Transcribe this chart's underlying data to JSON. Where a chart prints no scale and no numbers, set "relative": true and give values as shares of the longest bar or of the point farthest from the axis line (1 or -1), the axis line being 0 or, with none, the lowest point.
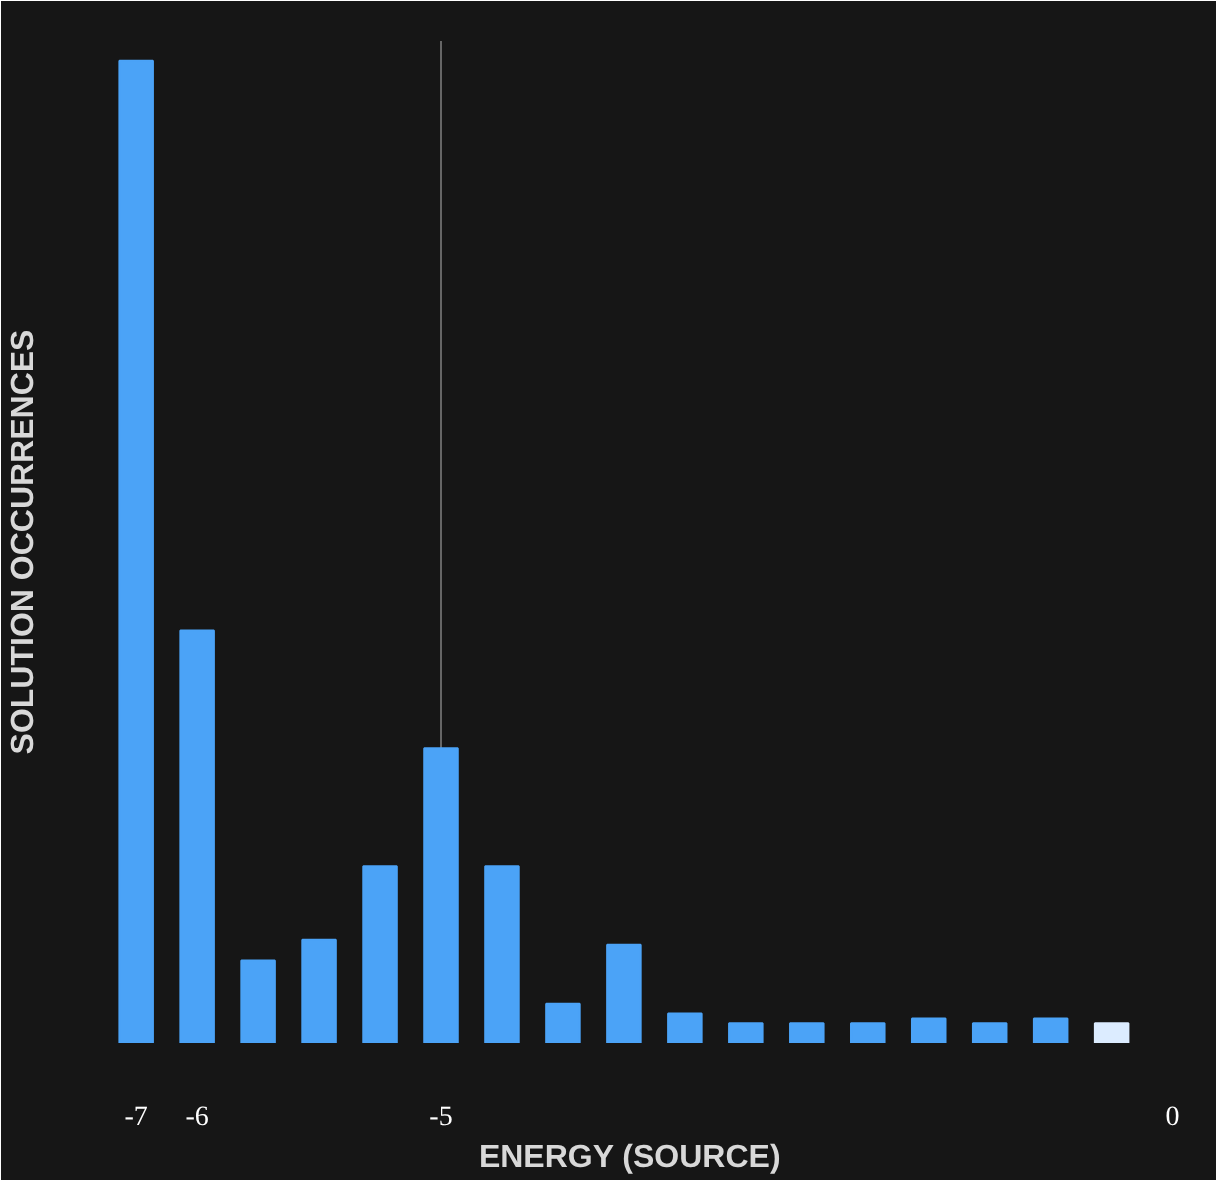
{
  "chart_data": {
    "type": "bar",
    "relative": true,
    "xlabel": "ENERGY (SOURCE)",
    "ylabel": "SOLUTION OCCURRENCES",
    "categories": [
      "-7",
      "-6",
      null,
      null,
      null,
      "-5",
      null,
      null,
      null,
      null,
      null,
      null,
      null,
      null,
      null,
      null,
      null,
      "0"
    ],
    "values": [
      1,
      0.42,
      0.084,
      0.105,
      0.18,
      0.3,
      0.18,
      0.04,
      0.1,
      0.03,
      0.02,
      0.02,
      0.02,
      0.025,
      0.02,
      0.025,
      0.02,
      null
    ],
    "colors": [
      "#4ba3f7",
      "#4ba3f7",
      "#4ba3f7",
      "#4ba3f7",
      "#4ba3f7",
      "#4ba3f7",
      "#4ba3f7",
      "#4ba3f7",
      "#4ba3f7",
      "#4ba3f7",
      "#4ba3f7",
      "#4ba3f7",
      "#4ba3f7",
      "#4ba3f7",
      "#4ba3f7",
      "#4ba3f7",
      "#dcecff",
      "#4ba3f7"
    ],
    "ref_lines": [
      {
        "axis": "x",
        "value": "-5",
        "color": "#666666"
      }
    ],
    "grid": false
  }
}
